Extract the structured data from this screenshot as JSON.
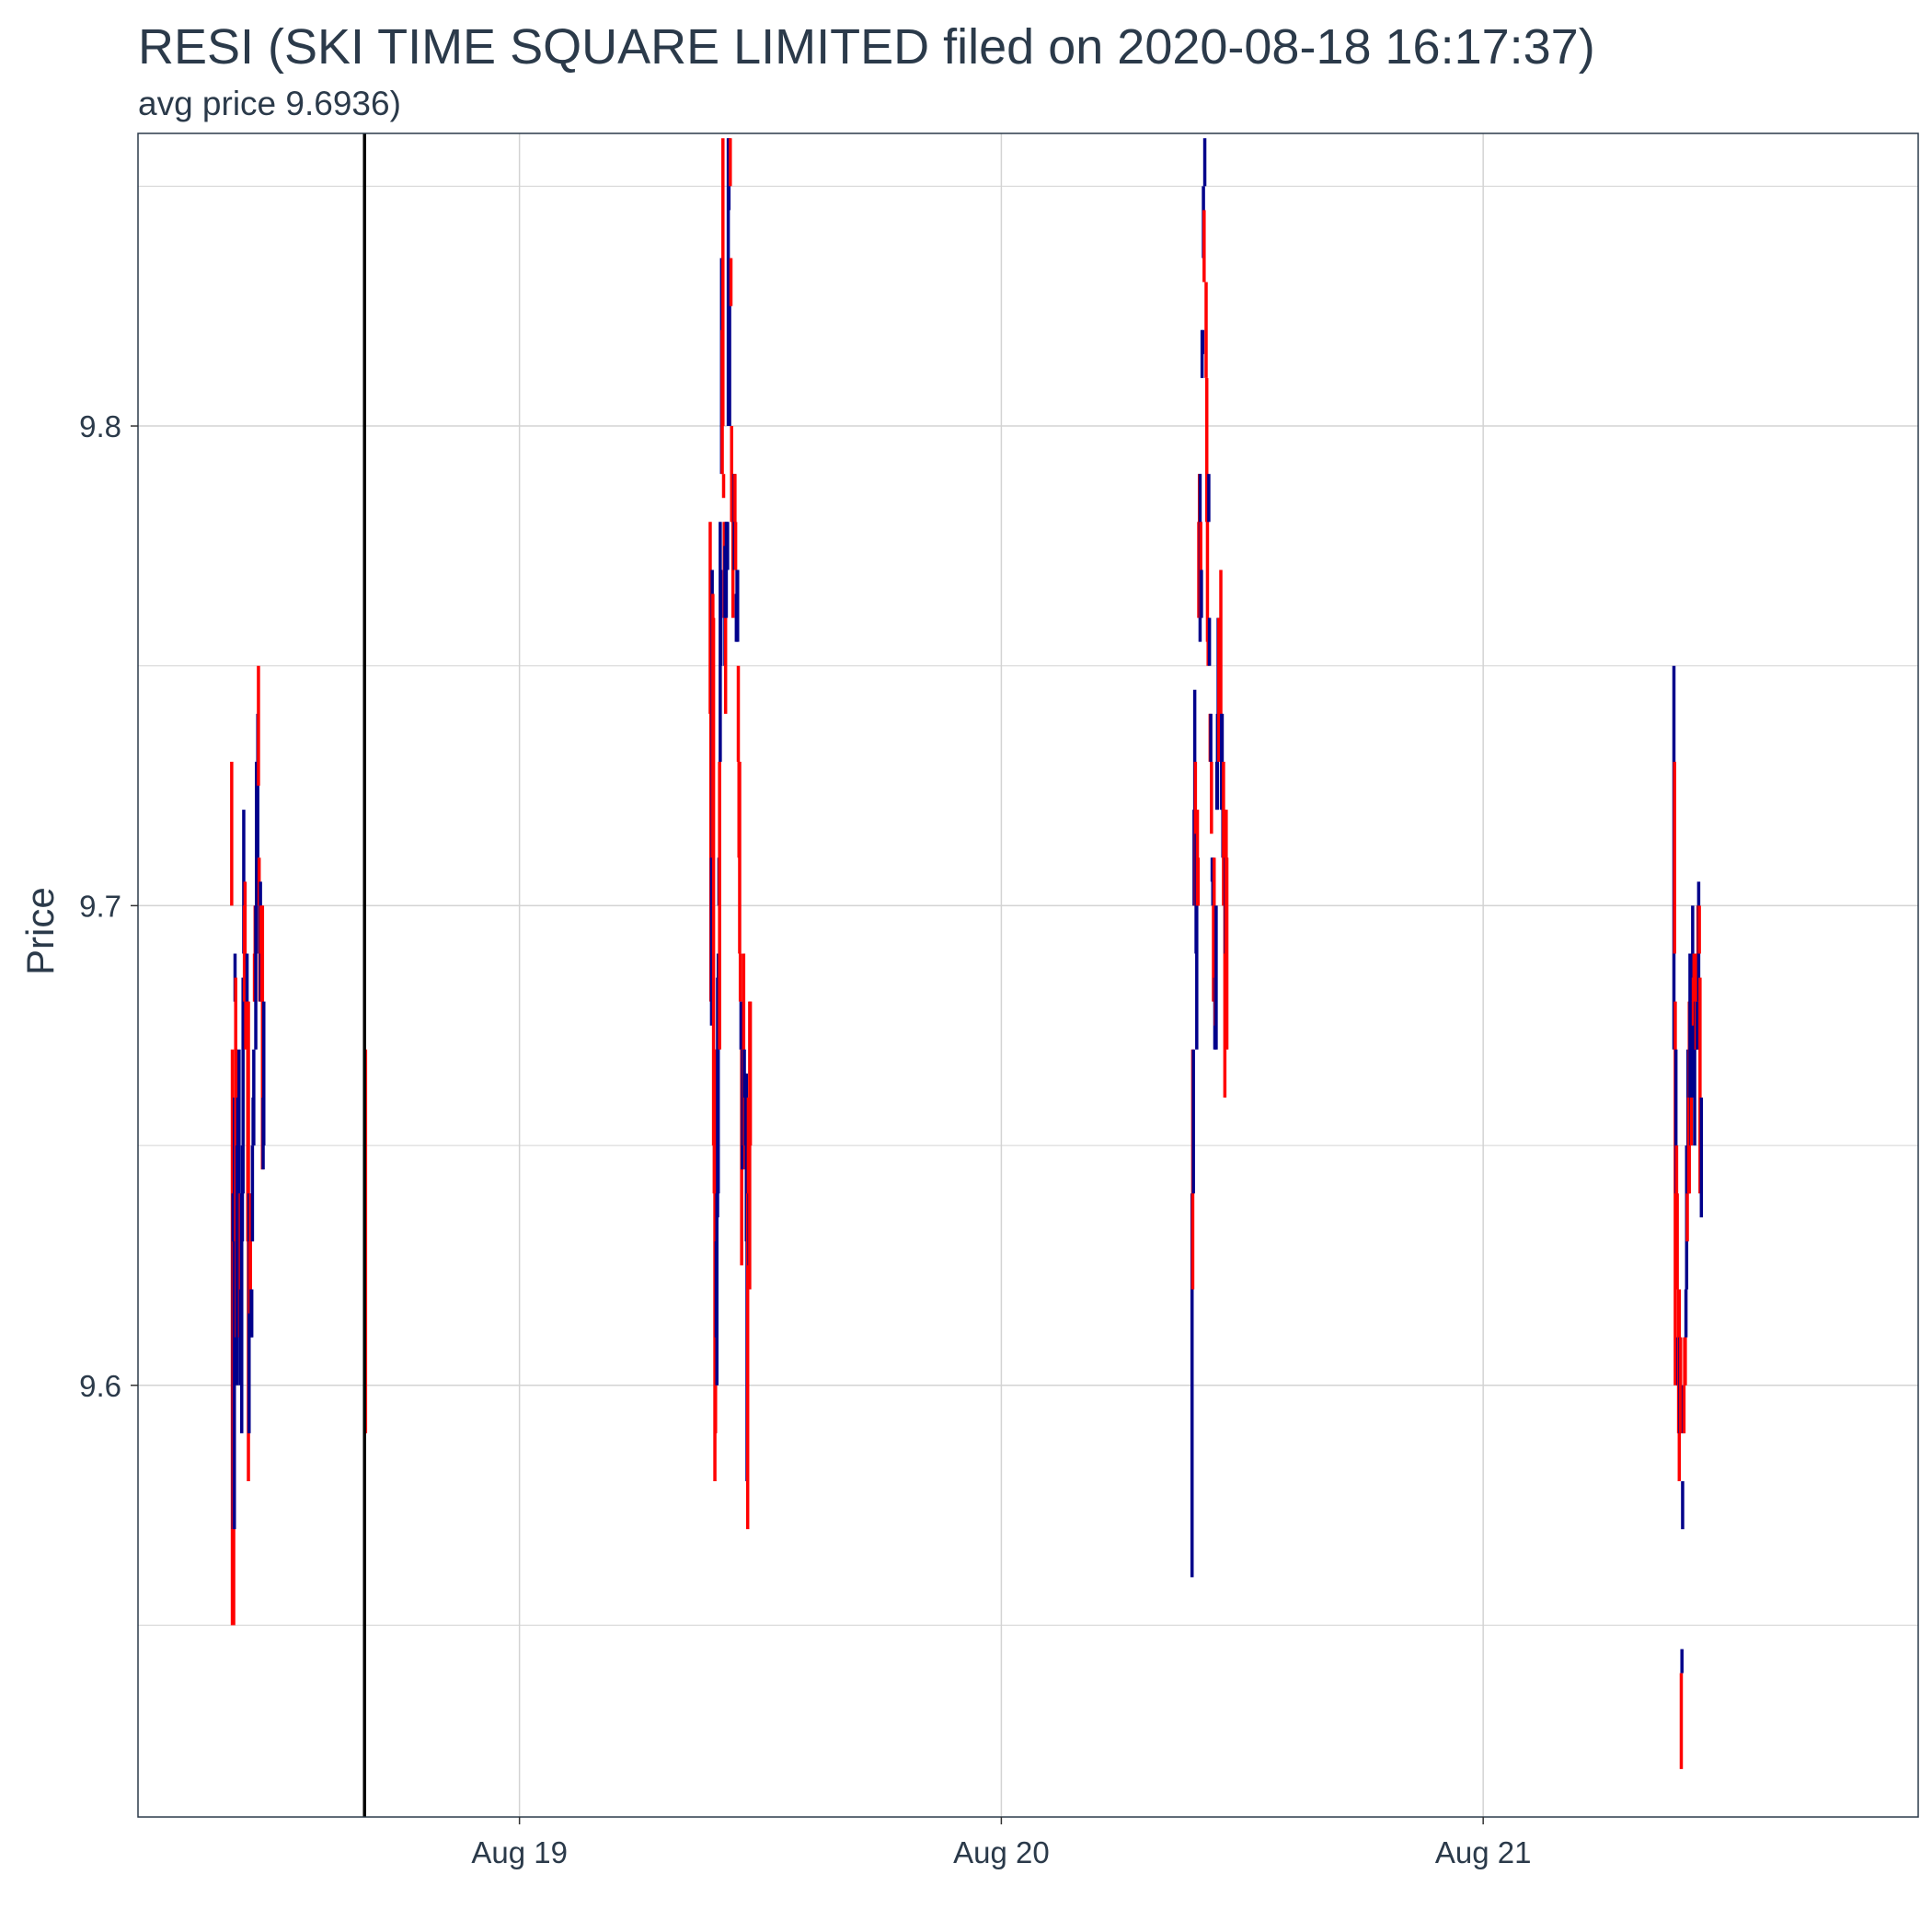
{
  "title": "RESI (SKI TIME SQUARE LIMITED filed on 2020-08-18 16:17:37)",
  "subtitle": "avg price 9.6936)",
  "chart_data": {
    "type": "ohlc",
    "xlabel": "",
    "ylabel": "Price",
    "xlim": [
      "2020-08-18 05:00",
      "2020-08-21 21:40"
    ],
    "ylim": [
      9.51,
      9.861
    ],
    "x_ticks": [
      {
        "t": "2020-08-19 00:00",
        "label": "Aug 19"
      },
      {
        "t": "2020-08-20 00:00",
        "label": "Aug 20"
      },
      {
        "t": "2020-08-21 00:00",
        "label": "Aug 21"
      }
    ],
    "y_ticks": [
      {
        "value": 9.6,
        "label": "9.6"
      },
      {
        "value": 9.7,
        "label": "9.7"
      },
      {
        "value": 9.8,
        "label": "9.8"
      }
    ],
    "y_minor_ticks": [
      9.55,
      9.65,
      9.75,
      9.85
    ],
    "grid": true,
    "colors": {
      "up": "#00008b",
      "down": "#ff0000",
      "event_line": "#000000",
      "grid": "#d3d3d3",
      "border": "#2b3a4a"
    },
    "event_time": "2020-08-18 16:17",
    "bars_by_day": [
      {
        "date": "2020-08-18",
        "open": "09:40",
        "interval_min": 2,
        "bars": [
          [
            9.73,
            9.7,
            "d"
          ],
          [
            9.67,
            9.55,
            "d"
          ],
          [
            9.64,
            9.57,
            "u"
          ],
          [
            9.63,
            9.55,
            "d"
          ],
          [
            9.66,
            9.57,
            "u"
          ],
          [
            9.69,
            9.68,
            "u"
          ],
          [
            9.685,
            9.63,
            "d"
          ],
          [
            9.67,
            9.61,
            "d"
          ],
          [
            9.65,
            9.6,
            "u"
          ],
          [
            9.66,
            9.61,
            "u"
          ],
          [
            9.66,
            9.62,
            "u"
          ],
          [
            9.67,
            9.62,
            "u"
          ],
          [
            9.64,
            9.61,
            "d"
          ],
          [
            9.64,
            9.6,
            "u"
          ],
          [
            9.64,
            9.62,
            "d"
          ],
          [
            9.64,
            9.59,
            "u"
          ],
          [
            9.65,
            9.63,
            "u"
          ],
          [
            9.685,
            9.64,
            "u"
          ],
          [
            9.72,
            9.69,
            "u"
          ],
          [
            9.7,
            9.68,
            "d"
          ],
          [
            9.705,
            9.69,
            "d"
          ],
          [
            9.69,
            9.67,
            "d"
          ],
          [
            9.685,
            9.675,
            "d"
          ],
          [
            9.69,
            9.68,
            "u"
          ],
          [
            9.68,
            9.63,
            "d"
          ],
          [
            9.68,
            9.58,
            "d"
          ],
          [
            9.64,
            9.59,
            "u"
          ],
          [
            9.63,
            9.615,
            "d"
          ],
          [
            9.64,
            9.62,
            "d"
          ],
          [
            9.62,
            9.61,
            "u"
          ],
          [
            9.62,
            9.61,
            "u"
          ],
          [
            9.65,
            9.63,
            "u"
          ],
          [
            9.66,
            9.65,
            "u"
          ],
          [
            9.67,
            9.65,
            "u"
          ],
          [
            9.69,
            9.68,
            "d"
          ],
          [
            9.7,
            9.68,
            "d"
          ],
          [
            9.7,
            9.67,
            "u"
          ],
          [
            9.73,
            9.69,
            "u"
          ],
          [
            9.73,
            9.71,
            "u"
          ],
          [
            9.74,
            9.71,
            "u"
          ],
          [
            9.75,
            9.725,
            "d"
          ],
          [
            9.71,
            9.7,
            "d"
          ],
          [
            9.7,
            9.68,
            "d"
          ],
          [
            9.705,
            9.68,
            "u"
          ],
          [
            9.7,
            9.69,
            "d"
          ],
          [
            9.7,
            9.68,
            "d"
          ],
          [
            9.7,
            9.645,
            "d"
          ],
          [
            9.66,
            9.645,
            "u"
          ],
          [
            9.68,
            9.65,
            "u"
          ]
        ]
      },
      {
        "date": "2020-08-18",
        "open": "16:20",
        "interval_min": 2,
        "bars": [
          [
            9.67,
            9.59,
            "d"
          ]
        ]
      },
      {
        "date": "2020-08-19",
        "open": "09:30",
        "interval_min": 2,
        "bars": [
          [
            9.78,
            9.74,
            "d"
          ],
          [
            9.75,
            9.68,
            "d"
          ],
          [
            9.71,
            9.675,
            "u"
          ],
          [
            9.77,
            9.69,
            "u"
          ],
          [
            9.765,
            9.71,
            "d"
          ],
          [
            9.76,
            9.65,
            "d"
          ],
          [
            9.67,
            9.64,
            "d"
          ],
          [
            9.67,
            9.58,
            "d"
          ],
          [
            9.63,
            9.59,
            "d"
          ],
          [
            9.63,
            9.61,
            "u"
          ],
          [
            9.64,
            9.6,
            "u"
          ],
          [
            9.685,
            9.635,
            "u"
          ],
          [
            9.69,
            9.64,
            "u"
          ],
          [
            9.71,
            9.7,
            "u"
          ],
          [
            9.73,
            9.67,
            "d"
          ],
          [
            9.78,
            9.73,
            "u"
          ],
          [
            9.77,
            9.75,
            "u"
          ],
          [
            9.835,
            9.79,
            "u"
          ],
          [
            9.82,
            9.79,
            "d"
          ],
          [
            9.86,
            9.8,
            "d"
          ],
          [
            9.79,
            9.785,
            "d"
          ],
          [
            9.78,
            9.76,
            "d"
          ],
          [
            9.775,
            9.75,
            "u"
          ],
          [
            9.76,
            9.74,
            "d"
          ],
          [
            9.78,
            9.76,
            "u"
          ],
          [
            9.78,
            9.77,
            "u"
          ],
          [
            9.77,
            9.78,
            "u"
          ],
          [
            9.86,
            9.8,
            "u"
          ],
          [
            9.86,
            9.845,
            "u"
          ],
          [
            9.835,
            9.8,
            "u"
          ],
          [
            9.86,
            9.85,
            "d"
          ],
          [
            9.835,
            9.825,
            "d"
          ],
          [
            9.8,
            9.78,
            "d"
          ],
          [
            9.79,
            9.78,
            "d"
          ],
          [
            9.785,
            9.76,
            "d"
          ],
          [
            9.79,
            9.77,
            "d"
          ],
          [
            9.79,
            9.77,
            "u"
          ],
          [
            9.79,
            9.78,
            "d"
          ],
          [
            9.78,
            9.77,
            "d"
          ],
          [
            9.765,
            9.755,
            "u"
          ],
          [
            9.77,
            9.76,
            "u"
          ],
          [
            9.77,
            9.755,
            "u"
          ],
          [
            9.75,
            9.73,
            "d"
          ],
          [
            9.73,
            9.71,
            "d"
          ],
          [
            9.73,
            9.69,
            "d"
          ],
          [
            9.69,
            9.68,
            "d"
          ],
          [
            9.68,
            9.67,
            "u"
          ],
          [
            9.67,
            9.625,
            "d"
          ],
          [
            9.67,
            9.645,
            "u"
          ],
          [
            9.66,
            9.65,
            "u"
          ],
          [
            9.69,
            9.65,
            "d"
          ],
          [
            9.67,
            9.65,
            "u"
          ],
          [
            9.66,
            9.645,
            "d"
          ],
          [
            9.665,
            9.65,
            "u"
          ],
          [
            9.665,
            9.63,
            "u"
          ],
          [
            9.64,
            9.58,
            "u"
          ],
          [
            9.64,
            9.57,
            "d"
          ],
          [
            9.66,
            9.63,
            "d"
          ],
          [
            9.64,
            9.625,
            "u"
          ],
          [
            9.68,
            9.62,
            "d"
          ],
          [
            9.68,
            9.65,
            "d"
          ]
        ]
      },
      {
        "date": "2020-08-20",
        "open": "09:30",
        "interval_min": 2,
        "bars": [
          [
            9.64,
            9.56,
            "u"
          ],
          [
            9.67,
            9.62,
            "d"
          ],
          [
            9.67,
            9.64,
            "u"
          ],
          [
            9.72,
            9.7,
            "u"
          ],
          [
            9.745,
            9.7,
            "u"
          ],
          [
            9.73,
            9.7,
            "d"
          ],
          [
            9.715,
            9.69,
            "u"
          ],
          [
            9.71,
            9.67,
            "u"
          ],
          [
            9.72,
            9.7,
            "d"
          ],
          [
            9.71,
            9.7,
            "d"
          ],
          [
            9.78,
            9.76,
            "d"
          ],
          [
            9.79,
            9.77,
            "d"
          ],
          [
            9.79,
            9.755,
            "u"
          ],
          [
            9.78,
            9.76,
            "d"
          ],
          [
            9.77,
            9.76,
            "u"
          ],
          [
            9.82,
            9.81,
            "u"
          ],
          [
            9.82,
            9.815,
            "u"
          ],
          [
            9.85,
            9.835,
            "u"
          ],
          [
            9.845,
            9.83,
            "d"
          ],
          [
            9.86,
            9.85,
            "u"
          ],
          [
            9.84,
            9.84,
            "u"
          ],
          [
            9.83,
            9.81,
            "d"
          ],
          [
            9.81,
            9.78,
            "d"
          ],
          [
            9.79,
            9.755,
            "d"
          ],
          [
            9.76,
            9.75,
            "d"
          ],
          [
            9.79,
            9.78,
            "u"
          ],
          [
            9.76,
            9.75,
            "u"
          ],
          [
            9.74,
            9.73,
            "d"
          ],
          [
            9.73,
            9.74,
            "u"
          ],
          [
            9.73,
            9.715,
            "d"
          ],
          [
            9.71,
            9.705,
            "u"
          ],
          [
            9.71,
            9.7,
            "u"
          ],
          [
            9.7,
            9.68,
            "d"
          ],
          [
            9.71,
            9.68,
            "d"
          ],
          [
            9.685,
            9.67,
            "u"
          ],
          [
            9.69,
            9.675,
            "d"
          ],
          [
            9.7,
            9.67,
            "u"
          ],
          [
            9.73,
            9.72,
            "u"
          ],
          [
            9.74,
            9.72,
            "u"
          ],
          [
            9.76,
            9.73,
            "u"
          ],
          [
            9.76,
            9.73,
            "d"
          ],
          [
            9.74,
            9.73,
            "d"
          ],
          [
            9.74,
            9.73,
            "d"
          ],
          [
            9.77,
            9.73,
            "d"
          ],
          [
            9.74,
            9.72,
            "u"
          ],
          [
            9.74,
            9.72,
            "u"
          ],
          [
            9.73,
            9.71,
            "u"
          ],
          [
            9.73,
            9.7,
            "d"
          ],
          [
            9.72,
            9.7,
            "d"
          ],
          [
            9.72,
            9.66,
            "d"
          ],
          [
            9.71,
            9.69,
            "u"
          ],
          [
            9.72,
            9.68,
            "d"
          ],
          [
            9.71,
            9.67,
            "d"
          ]
        ]
      },
      {
        "date": "2020-08-21",
        "open": "09:30",
        "interval_min": 2,
        "bars": [
          [
            9.75,
            9.67,
            "u"
          ],
          [
            9.73,
            9.69,
            "d"
          ],
          [
            9.68,
            9.6,
            "d"
          ],
          [
            9.67,
            9.64,
            "u"
          ],
          [
            9.65,
            9.63,
            "d"
          ],
          [
            9.64,
            9.62,
            "d"
          ],
          [
            9.61,
            9.6,
            "u"
          ],
          [
            9.62,
            9.59,
            "d"
          ],
          [
            9.62,
            9.58,
            "d"
          ],
          [
            9.61,
            9.59,
            "u"
          ],
          [
            9.61,
            9.59,
            "d"
          ],
          [
            9.54,
            9.52,
            "d"
          ],
          [
            9.54,
            9.545,
            "u"
          ],
          [
            9.58,
            9.57,
            "u"
          ],
          [
            9.6,
            9.59,
            "u"
          ],
          [
            9.6,
            9.59,
            "d"
          ],
          [
            9.61,
            9.6,
            "d"
          ],
          [
            9.61,
            9.6,
            "d"
          ],
          [
            9.62,
            9.61,
            "u"
          ],
          [
            9.65,
            9.62,
            "u"
          ],
          [
            9.64,
            9.63,
            "d"
          ],
          [
            9.67,
            9.64,
            "u"
          ],
          [
            9.66,
            9.64,
            "d"
          ],
          [
            9.68,
            9.64,
            "d"
          ],
          [
            9.69,
            9.66,
            "u"
          ],
          [
            9.66,
            9.65,
            "u"
          ],
          [
            9.66,
            9.65,
            "d"
          ],
          [
            9.68,
            9.66,
            "u"
          ],
          [
            9.7,
            9.68,
            "u"
          ],
          [
            9.685,
            9.675,
            "d"
          ],
          [
            9.69,
            9.68,
            "d"
          ],
          [
            9.675,
            9.65,
            "u"
          ],
          [
            9.68,
            9.67,
            "u"
          ],
          [
            9.68,
            9.67,
            "d"
          ],
          [
            9.69,
            9.67,
            "d"
          ],
          [
            9.68,
            9.67,
            "u"
          ],
          [
            9.7,
            9.68,
            "d"
          ],
          [
            9.705,
            9.68,
            "u"
          ],
          [
            9.7,
            9.69,
            "d"
          ],
          [
            9.685,
            9.64,
            "d"
          ],
          [
            9.66,
            9.645,
            "d"
          ],
          [
            9.66,
            9.635,
            "u"
          ]
        ]
      }
    ]
  }
}
